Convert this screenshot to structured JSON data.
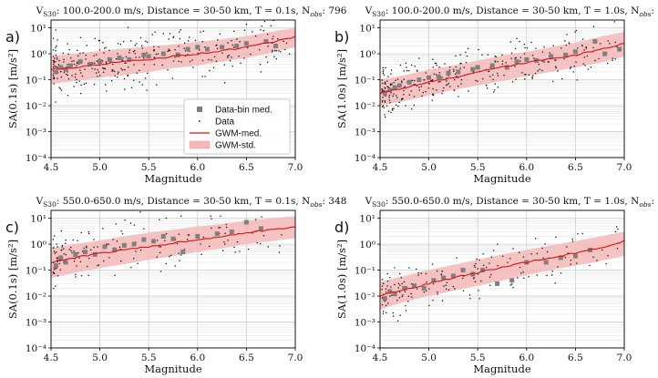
{
  "figure": {
    "panels": [
      {
        "label": "a)",
        "title_prefix": "V",
        "title_sub": "S30",
        "title_main": ": 100.0-200.0 m/s,  Distance = 30-50 km, T = 0.1s, N",
        "title_sub2": "obs",
        "title_end": ": 796",
        "ylabel": "SA(0.1s) [m/s²]",
        "xlabel": "Magnitude",
        "show_legend": true
      },
      {
        "label": "b)",
        "title_prefix": "V",
        "title_sub": "S30",
        "title_main": ": 100.0-200.0 m/s,  Distance = 30-50 km, T = 1.0s, N",
        "title_sub2": "obs",
        "title_end": ": 796",
        "ylabel": "SA(1.0s) [m/s²]",
        "xlabel": "Magnitude",
        "show_legend": false
      },
      {
        "label": "c)",
        "title_prefix": "V",
        "title_sub": "S30",
        "title_main": ": 550.0-650.0 m/s,  Distance = 30-50 km, T = 0.1s, N",
        "title_sub2": "obs",
        "title_end": ": 348",
        "ylabel": "SA(0.1s) [m/s²]",
        "xlabel": "Magnitude",
        "show_legend": false
      },
      {
        "label": "d)",
        "title_prefix": "V",
        "title_sub": "S30",
        "title_main": ": 550.0-650.0 m/s,  Distance = 30-50 km, T = 1.0s, N",
        "title_sub2": "obs",
        "title_end": ": 348",
        "ylabel": "SA(1.0s) [m/s²]",
        "xlabel": "Magnitude",
        "show_legend": false
      }
    ],
    "xticks": [
      "4.5",
      "5.0",
      "5.5",
      "6.0",
      "6.5",
      "7.0"
    ],
    "yticks": [
      "10⁻⁴",
      "10⁻³",
      "10⁻²",
      "10⁻¹",
      "10⁰",
      "10¹"
    ],
    "legend": {
      "binmed": "Data-bin med.",
      "data": "Data",
      "med": "GWM-med.",
      "std": "GWM-std."
    },
    "colors": {
      "med_line": "#e01010",
      "std_band": "#f5b8b8",
      "binmed": "#808080",
      "data": "#111111",
      "grid": "#c8c8c8"
    }
  },
  "chart_data": [
    {
      "type": "scatter",
      "panel": "a",
      "xlabel": "Magnitude",
      "ylabel": "SA(0.1s) [m/s^2]",
      "xlim": [
        4.5,
        7.0
      ],
      "ylim": [
        0.0001,
        20
      ],
      "yscale": "log",
      "n_obs": 796,
      "median_x": [
        4.5,
        4.75,
        5.0,
        5.25,
        5.5,
        5.75,
        6.0,
        6.25,
        6.5,
        6.75,
        7.0
      ],
      "median_y": [
        0.25,
        0.3,
        0.4,
        0.5,
        0.6,
        0.8,
        1.0,
        1.3,
        1.8,
        2.8,
        4.5
      ],
      "std_low": [
        0.07,
        0.09,
        0.12,
        0.15,
        0.2,
        0.28,
        0.35,
        0.5,
        0.7,
        1.1,
        1.8
      ],
      "std_high": [
        0.8,
        1.0,
        1.3,
        1.6,
        1.9,
        2.3,
        2.9,
        3.6,
        4.8,
        7.0,
        10.0
      ],
      "bin_med_x": [
        4.55,
        4.6,
        4.65,
        4.7,
        4.8,
        4.9,
        5.0,
        5.1,
        5.2,
        5.3,
        5.45,
        5.5,
        5.65,
        5.8,
        5.9,
        6.0,
        6.1,
        6.25,
        6.4,
        6.5,
        6.7,
        6.8
      ],
      "bin_med_y": [
        0.2,
        0.3,
        0.25,
        0.35,
        0.5,
        0.4,
        0.5,
        0.6,
        0.7,
        0.6,
        0.9,
        0.8,
        1.0,
        0.9,
        1.5,
        1.8,
        1.5,
        1.8,
        2.0,
        2.5,
        3.0,
        2.0
      ],
      "scatter_center": [
        0.3,
        0.35,
        0.45,
        0.55,
        0.65,
        0.85,
        1.05,
        1.35,
        1.8,
        2.5,
        3.5
      ],
      "scatter_spread": 0.5,
      "scatter_n": 320,
      "scatter_seed": 11
    },
    {
      "type": "scatter",
      "panel": "b",
      "xlabel": "Magnitude",
      "ylabel": "SA(1.0s) [m/s^2]",
      "xlim": [
        4.5,
        7.0
      ],
      "ylim": [
        0.0001,
        20
      ],
      "yscale": "log",
      "n_obs": 796,
      "median_x": [
        4.5,
        4.75,
        5.0,
        5.25,
        5.5,
        5.75,
        6.0,
        6.25,
        6.5,
        6.75,
        7.0
      ],
      "median_y": [
        0.03,
        0.05,
        0.08,
        0.12,
        0.2,
        0.3,
        0.45,
        0.65,
        0.9,
        1.4,
        2.5
      ],
      "std_low": [
        0.01,
        0.015,
        0.025,
        0.04,
        0.06,
        0.09,
        0.14,
        0.2,
        0.3,
        0.45,
        0.8
      ],
      "std_high": [
        0.1,
        0.15,
        0.25,
        0.35,
        0.55,
        0.85,
        1.2,
        1.8,
        2.7,
        4.5,
        7.0
      ],
      "bin_med_x": [
        4.55,
        4.6,
        4.65,
        4.7,
        4.8,
        4.9,
        5.0,
        5.1,
        5.2,
        5.3,
        5.45,
        5.5,
        5.65,
        5.8,
        5.9,
        6.0,
        6.1,
        6.25,
        6.4,
        6.5,
        6.7,
        6.8,
        6.95
      ],
      "bin_med_y": [
        0.03,
        0.04,
        0.05,
        0.06,
        0.08,
        0.1,
        0.12,
        0.13,
        0.18,
        0.2,
        0.25,
        0.3,
        0.35,
        0.3,
        0.5,
        0.6,
        0.55,
        0.8,
        0.9,
        1.2,
        3.0,
        1.0,
        1.5
      ],
      "scatter_center": [
        0.035,
        0.055,
        0.09,
        0.13,
        0.2,
        0.3,
        0.45,
        0.65,
        0.95,
        1.4,
        2.2
      ],
      "scatter_spread": 0.45,
      "scatter_n": 320,
      "scatter_seed": 23
    },
    {
      "type": "scatter",
      "panel": "c",
      "xlabel": "Magnitude",
      "ylabel": "SA(0.1s) [m/s^2]",
      "xlim": [
        4.5,
        7.0
      ],
      "ylim": [
        0.0001,
        20
      ],
      "yscale": "log",
      "n_obs": 348,
      "median_x": [
        4.5,
        4.75,
        5.0,
        5.25,
        5.5,
        5.75,
        6.0,
        6.25,
        6.5,
        6.75,
        7.0
      ],
      "median_y": [
        0.2,
        0.3,
        0.45,
        0.6,
        0.8,
        1.1,
        1.5,
        2.0,
        2.8,
        3.5,
        4.5
      ],
      "std_low": [
        0.05,
        0.08,
        0.12,
        0.17,
        0.25,
        0.35,
        0.5,
        0.7,
        1.0,
        1.3,
        1.7
      ],
      "std_high": [
        0.7,
        1.0,
        1.4,
        2.0,
        2.8,
        3.6,
        4.8,
        6.0,
        8.0,
        10.0,
        12.0
      ],
      "bin_med_x": [
        4.55,
        4.6,
        4.65,
        4.75,
        4.85,
        4.95,
        5.05,
        5.15,
        5.25,
        5.35,
        5.45,
        5.55,
        5.65,
        5.75,
        5.85,
        6.0,
        6.2,
        6.35,
        6.5,
        6.65
      ],
      "bin_med_y": [
        0.15,
        0.3,
        0.2,
        0.4,
        0.5,
        0.4,
        0.8,
        0.6,
        0.9,
        1.0,
        1.5,
        1.3,
        2.0,
        1.6,
        0.5,
        2.0,
        2.5,
        3.0,
        7.0,
        4.0
      ],
      "scatter_center": [
        0.25,
        0.32,
        0.45,
        0.6,
        0.8,
        1.1,
        1.5,
        2.0,
        2.8,
        3.5,
        4.5
      ],
      "scatter_spread": 0.5,
      "scatter_n": 170,
      "scatter_seed": 37
    },
    {
      "type": "scatter",
      "panel": "d",
      "xlabel": "Magnitude",
      "ylabel": "SA(1.0s) [m/s^2]",
      "xlim": [
        4.5,
        7.0
      ],
      "ylim": [
        0.0001,
        20
      ],
      "yscale": "log",
      "n_obs": 348,
      "median_x": [
        4.5,
        4.75,
        5.0,
        5.25,
        5.5,
        5.75,
        6.0,
        6.25,
        6.5,
        6.75,
        7.0
      ],
      "median_y": [
        0.01,
        0.018,
        0.03,
        0.05,
        0.08,
        0.13,
        0.2,
        0.3,
        0.45,
        0.7,
        1.3
      ],
      "std_low": [
        0.003,
        0.006,
        0.01,
        0.016,
        0.025,
        0.04,
        0.065,
        0.1,
        0.15,
        0.22,
        0.35
      ],
      "std_high": [
        0.035,
        0.06,
        0.1,
        0.16,
        0.25,
        0.4,
        0.6,
        0.9,
        1.3,
        2.0,
        3.0
      ],
      "bin_med_x": [
        4.55,
        4.6,
        4.65,
        4.75,
        4.85,
        4.95,
        5.05,
        5.15,
        5.25,
        5.35,
        5.45,
        5.55,
        5.7,
        5.85,
        6.0,
        6.2,
        6.35,
        6.5,
        6.65
      ],
      "bin_med_y": [
        0.008,
        0.015,
        0.012,
        0.02,
        0.025,
        0.02,
        0.04,
        0.05,
        0.06,
        0.1,
        0.07,
        0.1,
        0.03,
        0.04,
        0.2,
        0.2,
        0.3,
        0.35,
        0.6
      ],
      "scatter_center": [
        0.012,
        0.02,
        0.03,
        0.05,
        0.08,
        0.13,
        0.2,
        0.3,
        0.45,
        0.7,
        1.1
      ],
      "scatter_spread": 0.5,
      "scatter_n": 170,
      "scatter_seed": 53
    }
  ]
}
